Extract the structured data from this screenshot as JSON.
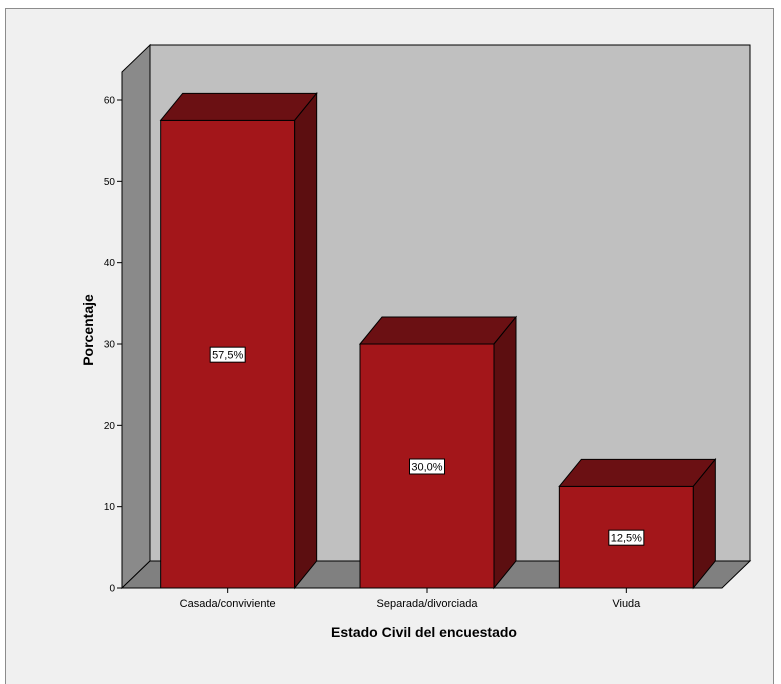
{
  "chart_data": {
    "type": "bar",
    "title": "",
    "xlabel": "Estado Civil del encuestado",
    "ylabel": "Porcentaje",
    "ylim": [
      0,
      60
    ],
    "yticks": [
      0,
      10,
      20,
      30,
      40,
      50,
      60
    ],
    "categories": [
      "Casada/conviviente",
      "Separada/divorciada",
      "Viuda"
    ],
    "values": [
      57.5,
      30.0,
      12.5
    ],
    "data_labels": [
      "57,5%",
      "30,0%",
      "12,5%"
    ],
    "bar_color": "#a3161a",
    "bar_top_color": "#6b1013",
    "bar_side_color": "#5c0e10",
    "wall_color": "#c0c0c0",
    "floor_color": "#808080",
    "side_wall_color": "#8a8a8a",
    "grid": false,
    "legend": "none"
  }
}
